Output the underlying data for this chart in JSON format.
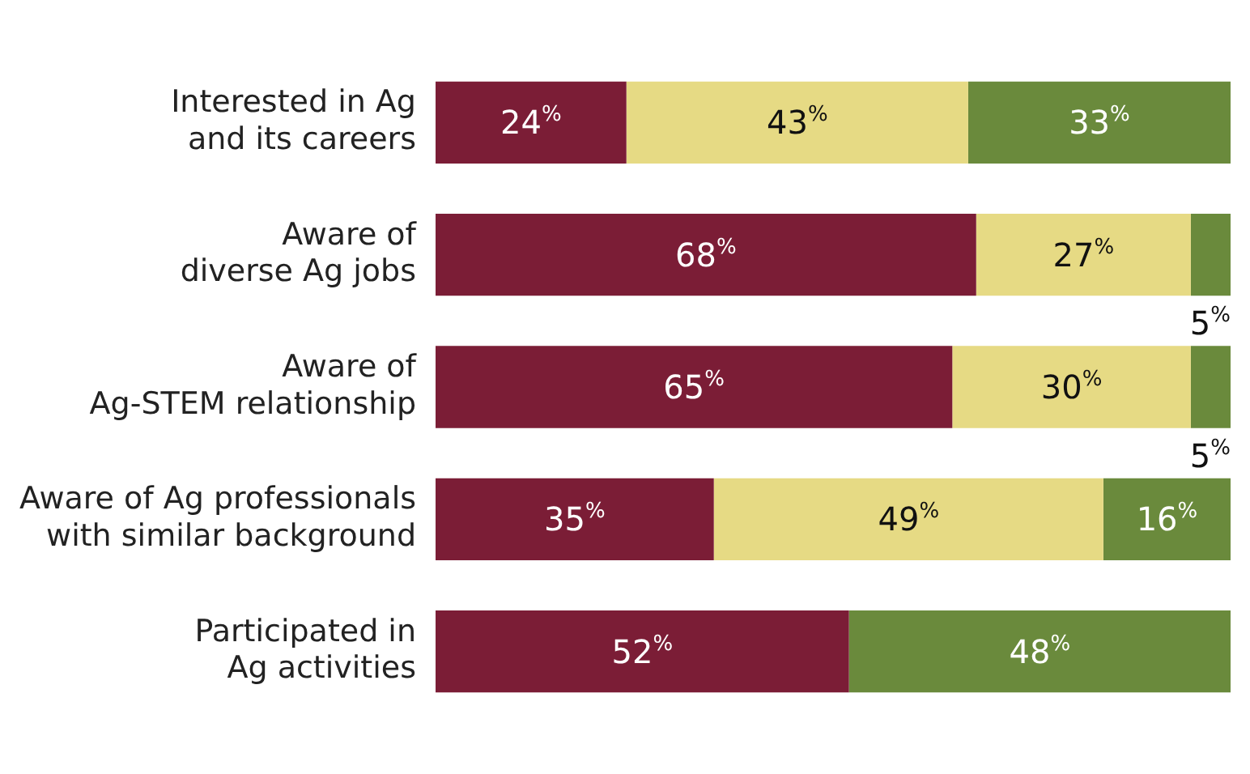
{
  "chart_data": {
    "type": "bar",
    "orientation": "horizontal",
    "stacked": true,
    "categories": [
      "Interested in Ag\nand its careers",
      "Aware of\ndiverse Ag jobs",
      "Aware of\nAg-STEM relationship",
      "Aware of Ag professionals\nwith similar background",
      "Participated in\nAg activities"
    ],
    "series": [
      {
        "color": "#7b1d36",
        "values": [
          24,
          68,
          65,
          35,
          52
        ],
        "value_labels": [
          "24%",
          "68%",
          "65%",
          "35%",
          "52%"
        ]
      },
      {
        "color": "#e6da84",
        "values": [
          43,
          27,
          30,
          49,
          null
        ],
        "value_labels": [
          "43%",
          "27%",
          "30%",
          "49%",
          null
        ]
      },
      {
        "color": "#6a8a3c",
        "values": [
          33,
          5,
          5,
          16,
          48
        ],
        "value_labels": [
          "33%",
          "5%",
          "5%",
          "16%",
          "48%"
        ]
      }
    ],
    "grid": false,
    "legend": false
  }
}
